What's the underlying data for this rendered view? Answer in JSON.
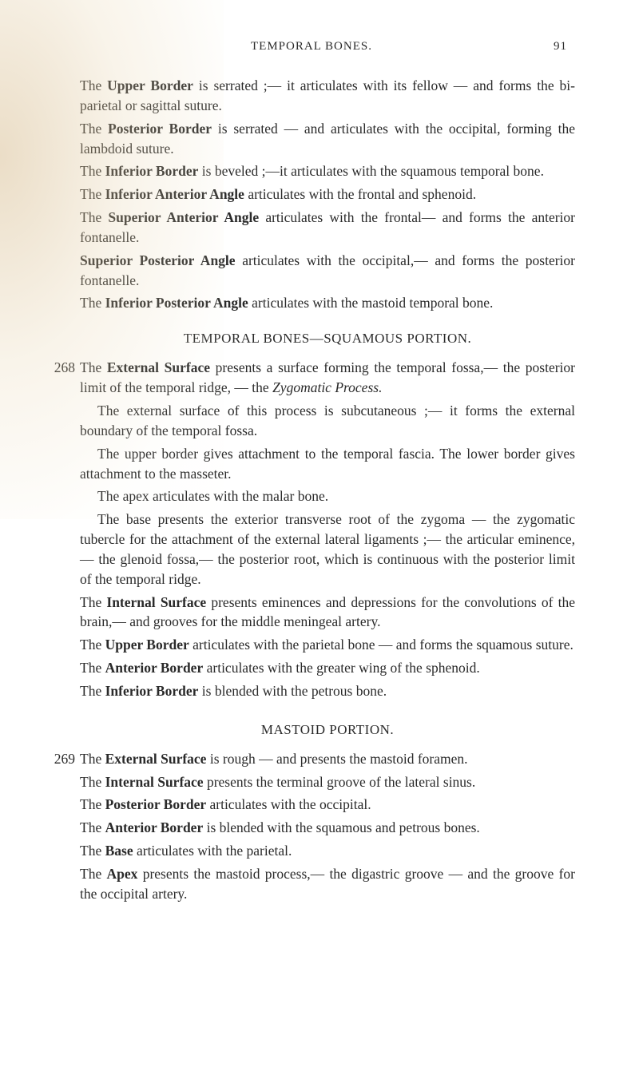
{
  "runningHead": {
    "title": "TEMPORAL BONES.",
    "pageNumber": "91"
  },
  "topBlock": {
    "p1a": "The ",
    "p1b": "Upper Border",
    "p1c": " is serrated ;— it articulates with its fellow — and forms the bi-parietal or sagittal suture.",
    "p2a": "The ",
    "p2b": "Posterior Border",
    "p2c": " is serrated — and articulates with the occipital, forming the lambdoid suture.",
    "p3a": "The ",
    "p3b": "Inferior Border",
    "p3c": " is beveled ;—it articulates with the squamous temporal bone.",
    "p4a": "The ",
    "p4b": "Inferior Anterior Angle",
    "p4c": " articulates with the frontal and sphenoid.",
    "p5a": "The ",
    "p5b": "Superior Anterior Angle",
    "p5c": " articulates with the frontal— and forms the anterior fontanelle.",
    "p6a": "",
    "p6b": "Superior Posterior Angle",
    "p6c": " articulates with the occipital,— and forms the posterior fontanelle.",
    "p7a": "The ",
    "p7b": "Inferior Posterior Angle",
    "p7c": " articulates with the mastoid temporal bone."
  },
  "section1Title": "TEMPORAL BONES—SQUAMOUS PORTION.",
  "entry268": {
    "num": "268",
    "p1a": "The ",
    "p1b": "External Surface",
    "p1c": " presents a surface forming the temporal fossa,— the posterior limit of the temporal ridge, — the ",
    "p1d": "Zygomatic Process.",
    "p2": "The external surface of this process is subcutaneous ;— it forms the external boundary of the temporal fossa.",
    "p3": "The upper border gives attachment to the temporal fascia. The lower border gives attachment to the masseter.",
    "p4": "The apex articulates with the malar bone.",
    "p5": "The base presents the exterior transverse root of the zygoma — the zygomatic tubercle for the attachment of the external lateral ligaments ;— the articular eminence,— the glenoid fossa,— the posterior root, which is continuous with the posterior limit of the temporal ridge.",
    "p6a": "The ",
    "p6b": "Internal Surface",
    "p6c": " presents eminences and depressions for the convolutions of the brain,— and grooves for the middle meningeal artery.",
    "p7a": "The ",
    "p7b": "Upper Border",
    "p7c": " articulates with the parietal bone — and forms the squamous suture.",
    "p8a": "The ",
    "p8b": "Anterior Border",
    "p8c": " articulates with the greater wing of the sphenoid.",
    "p9a": "The ",
    "p9b": "Inferior Border",
    "p9c": " is blended with the petrous bone."
  },
  "section2Title": "MASTOID PORTION.",
  "entry269": {
    "num": "269",
    "p1a": "The ",
    "p1b": "External Surface",
    "p1c": " is rough — and presents the mastoid foramen.",
    "p2a": "The ",
    "p2b": "Internal Surface",
    "p2c": " presents the terminal groove of the lateral sinus.",
    "p3a": "The ",
    "p3b": "Posterior Border",
    "p3c": " articulates with the occipital.",
    "p4a": "The ",
    "p4b": "Anterior Border",
    "p4c": " is blended with the squamous and petrous bones.",
    "p5a": "The ",
    "p5b": "Base",
    "p5c": " articulates with the parietal.",
    "p6a": "The ",
    "p6b": "Apex",
    "p6c": " presents the mastoid process,— the digastric groove — and the groove for the occipital artery."
  }
}
